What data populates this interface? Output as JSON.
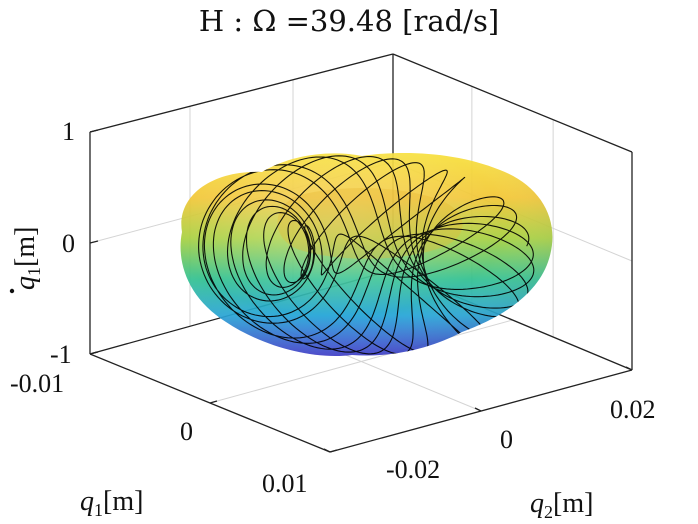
{
  "chart_data": {
    "type": "surface3d",
    "title": "H : Ω =39.48 [rad/s]",
    "x_axis": {
      "label_var": "q",
      "label_sub": "1",
      "label_unit": "[m]",
      "ticks": [
        "-0.01",
        "0",
        "0.01"
      ],
      "range": [
        -0.01,
        0.01
      ]
    },
    "y_axis": {
      "label_var": "q",
      "label_sub": "2",
      "label_unit": "[m]",
      "ticks": [
        "-0.02",
        "0",
        "0.02"
      ],
      "range": [
        -0.02,
        0.02
      ]
    },
    "z_axis": {
      "label_var": "q",
      "label_sub": "1",
      "label_unit": "[m]",
      "label_dot": true,
      "ticks": [
        "-1",
        "0",
        "1"
      ],
      "range": [
        -1,
        1
      ]
    },
    "grid": true,
    "surface": {
      "shape": "ellipsoidal torus",
      "colormap": "parula",
      "colors": [
        "#3e3ad6",
        "#1fa3d6",
        "#2fc08e",
        "#a6cf3c",
        "#f2c531",
        "#f7e03a"
      ]
    },
    "trajectory": {
      "color": "#000000",
      "style": "quasi-periodic orbit"
    }
  }
}
